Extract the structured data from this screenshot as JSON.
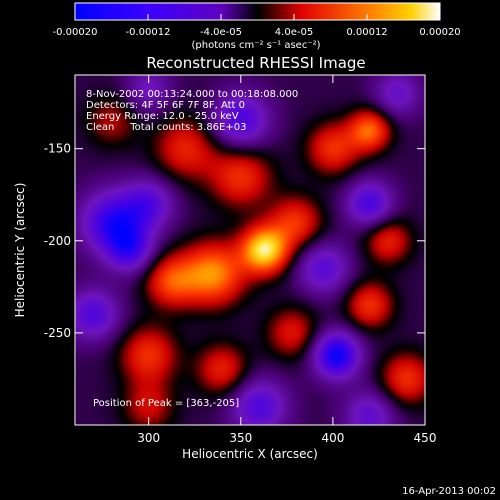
{
  "chart_data": {
    "type": "heatmap",
    "title": "Reconstructed RHESSI Image",
    "xlabel": "Heliocentric X (arcsec)",
    "ylabel": "Heliocentric Y (arcsec)",
    "xlim": [
      260,
      450
    ],
    "ylim": [
      -300,
      -110
    ],
    "x_ticks": [
      300,
      350,
      400,
      450
    ],
    "y_ticks": [
      -150,
      -200,
      -250
    ],
    "colorbar": {
      "range": [
        -0.0002,
        0.0002
      ],
      "tick_labels": [
        "-0.00020",
        "-0.00012",
        "-4.0e-05",
        "4.0e-05",
        "0.00012",
        "0.00020"
      ],
      "tick_values": [
        -0.0002,
        -0.00012,
        -4e-05,
        4e-05,
        0.00012,
        0.0002
      ],
      "unit_label": "(photons cm⁻² s⁻¹ asec⁻²)",
      "colors": [
        "#0000ff",
        "#6a00ff",
        "#000000",
        "#ff0000",
        "#ff8800",
        "#ffffff"
      ]
    },
    "annotations": [
      " 8-Nov-2002 00:13:24.000 to 00:18:08.000",
      "Detectors: 4F 5F 6F 7F 8F, Att 0",
      "Energy Range: 12.0 - 25.0 keV",
      "Clean     Total counts: 3.86E+03"
    ],
    "peak_label": "Position of Peak = [363,-205]",
    "peak": [
      363,
      -205
    ],
    "blobs": [
      {
        "x": 363,
        "y": -205,
        "v": 1.0,
        "s": 9
      },
      {
        "x": 335,
        "y": -218,
        "v": 0.75,
        "s": 12
      },
      {
        "x": 312,
        "y": -222,
        "v": 0.55,
        "s": 10
      },
      {
        "x": 380,
        "y": -190,
        "v": 0.5,
        "s": 10
      },
      {
        "x": 350,
        "y": -165,
        "v": 0.5,
        "s": 12
      },
      {
        "x": 320,
        "y": -150,
        "v": 0.45,
        "s": 12
      },
      {
        "x": 400,
        "y": -150,
        "v": 0.5,
        "s": 10
      },
      {
        "x": 420,
        "y": -140,
        "v": 0.65,
        "s": 8
      },
      {
        "x": 430,
        "y": -200,
        "v": 0.45,
        "s": 9
      },
      {
        "x": 420,
        "y": -235,
        "v": 0.5,
        "s": 9
      },
      {
        "x": 378,
        "y": -250,
        "v": 0.4,
        "s": 10
      },
      {
        "x": 300,
        "y": -262,
        "v": 0.5,
        "s": 11
      },
      {
        "x": 340,
        "y": -270,
        "v": 0.45,
        "s": 10
      },
      {
        "x": 440,
        "y": -275,
        "v": 0.5,
        "s": 10
      },
      {
        "x": 300,
        "y": -290,
        "v": 0.35,
        "s": 10
      },
      {
        "x": 280,
        "y": -135,
        "v": 0.3,
        "s": 10
      },
      {
        "x": 402,
        "y": -262,
        "v": -0.85,
        "s": 9
      },
      {
        "x": 280,
        "y": -190,
        "v": -0.7,
        "s": 12
      },
      {
        "x": 300,
        "y": -180,
        "v": -0.5,
        "s": 10
      },
      {
        "x": 290,
        "y": -205,
        "v": -0.55,
        "s": 9
      },
      {
        "x": 350,
        "y": -135,
        "v": -0.6,
        "s": 11
      },
      {
        "x": 420,
        "y": -180,
        "v": -0.6,
        "s": 9
      },
      {
        "x": 395,
        "y": -215,
        "v": -0.5,
        "s": 10
      },
      {
        "x": 270,
        "y": -240,
        "v": -0.55,
        "s": 10
      },
      {
        "x": 360,
        "y": -290,
        "v": -0.55,
        "s": 11
      },
      {
        "x": 420,
        "y": -295,
        "v": -0.45,
        "s": 10
      },
      {
        "x": 435,
        "y": -120,
        "v": -0.4,
        "s": 9
      },
      {
        "x": 300,
        "y": -118,
        "v": -0.35,
        "s": 9
      }
    ]
  },
  "footer_timestamp": "16-Apr-2013 00:02"
}
